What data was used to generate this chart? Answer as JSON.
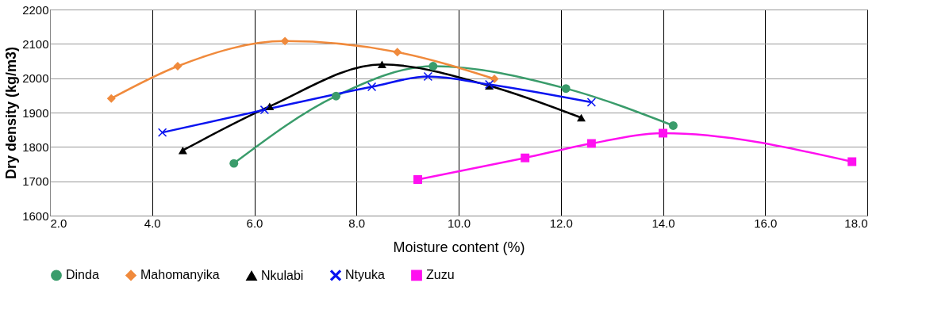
{
  "chart_data": {
    "type": "line",
    "xlabel": "Moisture content (%)",
    "ylabel": "Dry density (kg/m3)",
    "xlim": [
      2.0,
      18.0
    ],
    "xticks": [
      {
        "value": 2,
        "label": "2.0"
      },
      {
        "value": 4,
        "label": "4.0"
      },
      {
        "value": 6,
        "label": "6.0"
      },
      {
        "value": 8,
        "label": "8.0"
      },
      {
        "value": 10,
        "label": "10.0"
      },
      {
        "value": 12,
        "label": "12.0"
      },
      {
        "value": 14,
        "label": "14.0"
      },
      {
        "value": 16,
        "label": "16.0"
      },
      {
        "value": 18,
        "label": "18.0"
      }
    ],
    "ylim": [
      1600,
      2200
    ],
    "yticks": [
      1600,
      1700,
      1800,
      1900,
      2000,
      2100,
      2200
    ],
    "grid": true,
    "legend": "bottom",
    "series": [
      {
        "name": "Dinda",
        "color": "#3a9c6b",
        "marker": "circle",
        "x": [
          5.6,
          7.6,
          9.5,
          12.1,
          14.2
        ],
        "values": [
          1752,
          1948,
          2035,
          1970,
          1862
        ]
      },
      {
        "name": "Mahomanyika",
        "color": "#f08a3c",
        "marker": "diamond",
        "x": [
          3.2,
          4.5,
          6.6,
          8.8,
          10.7
        ],
        "values": [
          1941,
          2035,
          2108,
          2076,
          1998
        ]
      },
      {
        "name": "Nkulabi",
        "color": "#000000",
        "marker": "triangle",
        "x": [
          4.6,
          6.3,
          8.5,
          10.6,
          12.4
        ],
        "values": [
          1790,
          1918,
          2040,
          1978,
          1885
        ]
      },
      {
        "name": "Ntyuka",
        "color": "#0a14f0",
        "marker": "cross",
        "x": [
          4.2,
          6.2,
          8.3,
          9.4,
          10.6,
          12.6
        ],
        "values": [
          1842,
          1908,
          1975,
          2005,
          1982,
          1930
        ]
      },
      {
        "name": "Zuzu",
        "color": "#ff10f0",
        "marker": "square",
        "x": [
          9.2,
          11.3,
          12.6,
          14.0,
          17.7
        ],
        "values": [
          1705,
          1768,
          1810,
          1840,
          1757
        ]
      }
    ]
  }
}
